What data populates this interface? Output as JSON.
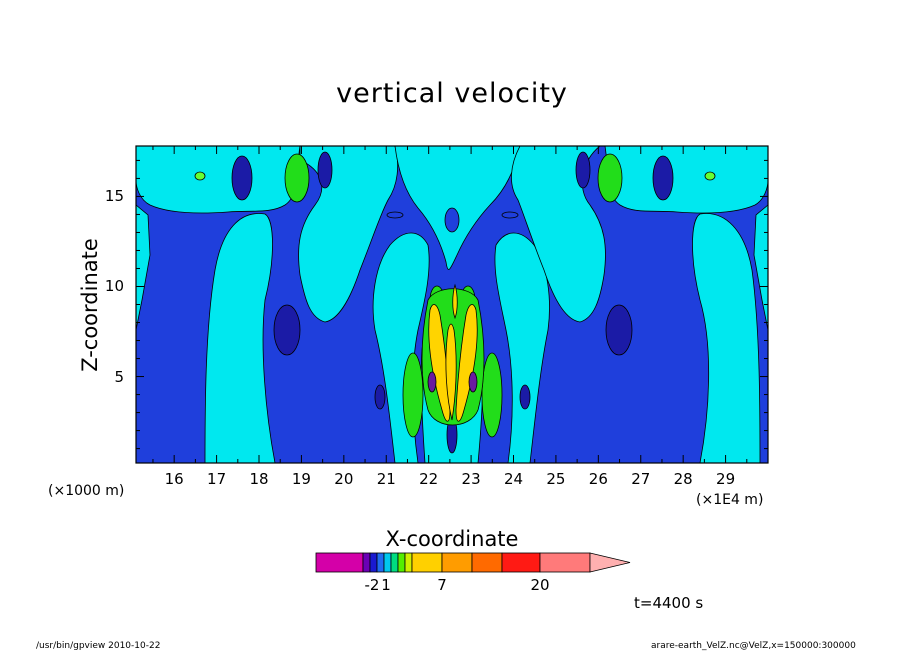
{
  "chart_data": {
    "type": "heatmap",
    "title": "vertical velocity",
    "xlabel": "X-coordinate",
    "ylabel": "Z-coordinate",
    "x_unit_left": "(×1000 m)",
    "x_unit_right": "(×1E4 m)",
    "xlim": [
      15.1,
      30.0
    ],
    "ylim": [
      0.2,
      17.8
    ],
    "x_ticks": [
      16,
      17,
      18,
      19,
      20,
      21,
      22,
      23,
      24,
      25,
      26,
      27,
      28,
      29
    ],
    "y_ticks": [
      5,
      10,
      15
    ],
    "colorbar": {
      "colors": [
        "#d400a8",
        "#6a00b5",
        "#1a1ad0",
        "#1f6cf0",
        "#00c8ee",
        "#00dd80",
        "#55ee00",
        "#d0f000",
        "#ffd000",
        "#ff9c00",
        "#ff6a00",
        "#ff1a14",
        "#ff7a7a",
        "#ffb0b0"
      ],
      "tick_labels": [
        "-2",
        "1",
        "7",
        "20"
      ]
    },
    "time_label": "t=4400 s",
    "colors": {
      "deep_blue": "#1f3fdc",
      "cyan": "#00e8ef",
      "light_cyan": "#2ff0f4",
      "dark_blue": "#1b1ba6",
      "green": "#22dd1a",
      "light_green": "#66ff33",
      "yellow": "#ffd400",
      "purple": "#6a1aa0"
    }
  },
  "footer": {
    "left": "/usr/bin/gpview   2010-10-22",
    "right": "arare-earth_VelZ.nc@VelZ,x=150000:300000"
  }
}
